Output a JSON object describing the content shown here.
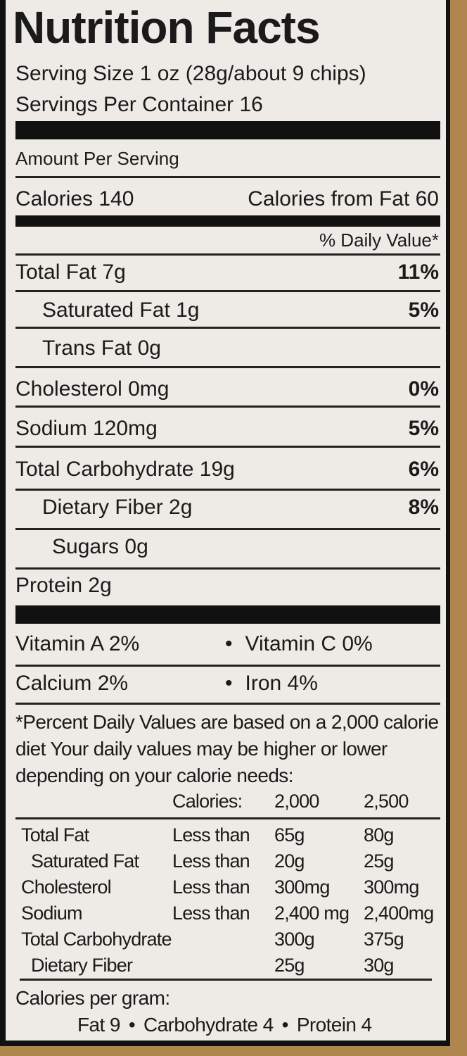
{
  "title": "Nutrition Facts",
  "serving_size": "Serving Size 1 oz (28g/about 9 chips)",
  "servings_per_container": "Servings Per Container 16",
  "amount_per_serving": "Amount Per Serving",
  "calories": "Calories 140",
  "calories_from_fat": "Calories from Fat 60",
  "daily_value_header": "% Daily Value*",
  "nutrients": [
    {
      "label": "Total Fat 7g",
      "dv": "11%"
    },
    {
      "label": "Saturated Fat 1g",
      "dv": "5%"
    },
    {
      "label": "Trans Fat 0g",
      "dv": ""
    },
    {
      "label": "Cholesterol 0mg",
      "dv": "0%"
    },
    {
      "label": "Sodium 120mg",
      "dv": "5%"
    },
    {
      "label": "Total Carbohydrate 19g",
      "dv": "6%"
    },
    {
      "label": "Dietary Fiber 2g",
      "dv": "8%"
    },
    {
      "label": "Sugars 0g",
      "dv": ""
    },
    {
      "label": "Protein 2g",
      "dv": ""
    }
  ],
  "vitamins": [
    {
      "left": "Vitamin A 2%",
      "right": "Vitamin C 0%"
    },
    {
      "left": "Calcium 2%",
      "right": "Iron 4%"
    }
  ],
  "bullet": "•",
  "footnote": [
    "*Percent Daily Values are based on a 2,000 calorie",
    "diet  Your daily values may be higher or lower",
    "depending on your calorie needs:"
  ],
  "dv_table": {
    "header": [
      "",
      "Calories:",
      "2,000",
      "2,500"
    ],
    "rows": [
      [
        "Total Fat",
        "Less than",
        "65g",
        "80g"
      ],
      [
        "Saturated Fat",
        "Less than",
        "20g",
        "25g"
      ],
      [
        "Cholesterol",
        "Less than",
        "300mg",
        "300mg"
      ],
      [
        "Sodium",
        "Less than",
        "2,400 mg",
        "2,400mg"
      ],
      [
        "Total Carbohydrate",
        "",
        "300g",
        "375g"
      ],
      [
        "Dietary Fiber",
        "",
        "25g",
        "30g"
      ]
    ]
  },
  "calories_per_gram": "Calories per gram:",
  "calories_per_gram_values": [
    "Fat 9",
    "Carbohydrate 4",
    "Protein 4"
  ]
}
